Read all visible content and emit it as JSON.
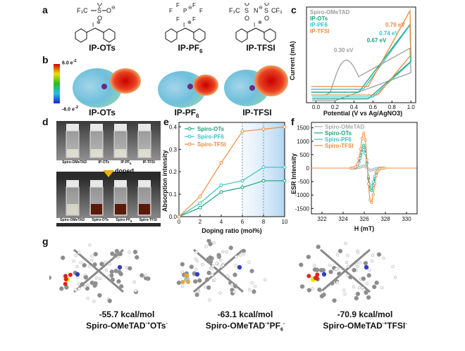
{
  "panel_labels": {
    "a": "a",
    "b": "b",
    "c": "c",
    "d": "d",
    "e": "e",
    "f": "f",
    "g": "g"
  },
  "panel_a": {
    "molecules": [
      {
        "name": "IP-OTs",
        "anion_formula": "F3C–SO3⁻"
      },
      {
        "name": "IP-PF6",
        "anion_formula": "PF6⁻"
      },
      {
        "name": "IP-TFSI",
        "anion_formula": "F3C–SO2–N⁻–SO2–CF3"
      }
    ],
    "labels": [
      "IP-OTs",
      "IP-PF",
      "6",
      "IP-TFSI"
    ]
  },
  "panel_b": {
    "scale_max": "6.0 e",
    "scale_min": "-6.0 e",
    "scale_sup": "-2",
    "labels": [
      "IP-OTs",
      "IP-PF",
      "6",
      "IP-TFSI"
    ]
  },
  "panel_c": {
    "chart_data": {
      "type": "line",
      "xlabel": "Potential (V vs Ag/AgNO3)",
      "ylabel": "Current (mA)",
      "xlim": [
        -0.1,
        1.05
      ],
      "xticks": [
        "0.0",
        "0.2",
        "0.4",
        "0.6",
        "0.8",
        "1.0"
      ],
      "series": [
        {
          "name": "Spiro-OMeTAD",
          "color": "#9e9e9e",
          "annotation": "0.30 eV"
        },
        {
          "name": "IP-OTs",
          "color": "#1aa37a",
          "annotation": "0.67 eV"
        },
        {
          "name": "IP-PF6",
          "color": "#33c4c4",
          "annotation": "0.74 eV"
        },
        {
          "name": "IP-TFSI",
          "color": "#f08a3c",
          "annotation": "0.79 eV"
        }
      ]
    }
  },
  "panel_d": {
    "top_labels": [
      "Spiro-OMeTAD",
      "IP-OTs",
      "IP-PF",
      "IP-TFSI"
    ],
    "top_sub": "6",
    "arrow_label": "doped",
    "bottom_labels": [
      "Spiro-OMeTAD",
      "Spiro-OTs",
      "Spiro-PF",
      "Spiro-TFSI"
    ],
    "bottom_sub": "6"
  },
  "panel_e": {
    "chart_data": {
      "type": "line",
      "xlabel": "Doping ratio (mol%)",
      "ylabel": "Absorption intensity",
      "xlim": [
        0,
        10
      ],
      "ylim": [
        0,
        0.42
      ],
      "xticks": [
        0,
        2,
        4,
        6,
        8,
        10
      ],
      "yticks": [
        0.0,
        0.1,
        0.2,
        0.3,
        0.4
      ],
      "x": [
        0,
        2,
        4,
        6,
        8,
        10
      ],
      "series": [
        {
          "name": "Spiro-OTs",
          "color": "#1aa37a",
          "values": [
            0.0,
            0.04,
            0.11,
            0.13,
            0.16,
            0.16
          ]
        },
        {
          "name": "Spiro-PF6",
          "color": "#33c4c4",
          "values": [
            0.0,
            0.06,
            0.14,
            0.16,
            0.22,
            0.22
          ]
        },
        {
          "name": "Spiro-TFSI",
          "color": "#f08a3c",
          "values": [
            0.0,
            0.09,
            0.24,
            0.38,
            0.39,
            0.4
          ]
        }
      ]
    }
  },
  "panel_f": {
    "chart_data": {
      "type": "line",
      "xlabel": "H (mT)",
      "ylabel": "ESR Intensity",
      "xlim": [
        321,
        331
      ],
      "ylim": [
        -1700,
        1700
      ],
      "xticks": [
        322,
        324,
        326,
        328,
        330
      ],
      "yticks": [
        -1500,
        -1000,
        -500,
        0,
        500,
        1000,
        1500
      ],
      "series": [
        {
          "name": "Spiro-OMeTAD",
          "color": "#aaaaaa",
          "peak": 80
        },
        {
          "name": "Spiro-OTs",
          "color": "#1aa37a",
          "peak": 850
        },
        {
          "name": "Spiro-PF6",
          "color": "#33c4c4",
          "peak": 680
        },
        {
          "name": "Spiro-TFSI",
          "color": "#f08a3c",
          "peak": 1300
        }
      ]
    }
  },
  "panel_g": {
    "items": [
      {
        "energy": "-55.7 kcal/mol",
        "complex": "Spiro-OMeTAD",
        "sup": "·+",
        "anion": "OTs",
        "anion_sub": "",
        "anion_sup": "-"
      },
      {
        "energy": "-63.1 kcal/mol",
        "complex": "Spiro-OMeTAD",
        "sup": "·+",
        "anion": "PF",
        "anion_sub": "6",
        "anion_sup": "-"
      },
      {
        "energy": "-70.9 kcal/mol",
        "complex": "Spiro-OMeTAD",
        "sup": "·+",
        "anion": "TFSI",
        "anion_sub": "",
        "anion_sup": "-"
      }
    ]
  },
  "colors": {
    "ots": "#1aa37a",
    "pf6": "#33c4c4",
    "tfsi": "#f08a3c",
    "spiro": "#9e9e9e"
  }
}
